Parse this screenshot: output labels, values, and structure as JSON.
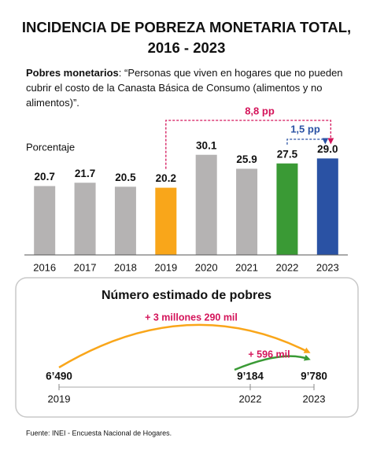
{
  "chart_data": [
    {
      "type": "bar",
      "title": "INCIDENCIA DE POBREZA MONETARIA TOTAL, 2016 - 2023",
      "subtitle_label": "Pobres monetarios",
      "subtitle": ": “Personas que viven en hogares que no pueden cubrir el costo de la Canasta Básica de Consumo (alimentos y no alimentos)”.",
      "y_label": "Porcentaje",
      "categories": [
        "2016",
        "2017",
        "2018",
        "2019",
        "2020",
        "2021",
        "2022",
        "2023"
      ],
      "values": [
        20.7,
        21.7,
        20.5,
        20.2,
        30.1,
        25.9,
        27.5,
        29.0
      ],
      "value_labels": [
        "20.7",
        "21.7",
        "20.5",
        "20.2",
        "30.1",
        "25.9",
        "27.5",
        "29.0"
      ],
      "colors": [
        "#b5b3b3",
        "#b5b3b3",
        "#b5b3b3",
        "#f9a61a",
        "#b5b3b3",
        "#b5b3b3",
        "#3a9a35",
        "#2a52a4"
      ],
      "ylim": [
        0,
        35
      ],
      "annotations": [
        {
          "text": "8,8 pp",
          "color": "#d4145a"
        },
        {
          "text": "1,5 pp",
          "color": "#2a52a4"
        }
      ]
    },
    {
      "type": "timeline",
      "title": "Número estimado de pobres",
      "x": [
        2019,
        2022,
        2023
      ],
      "values": [
        6490,
        9184,
        9780
      ],
      "value_labels": [
        "6’490",
        "9’184",
        "9’780"
      ],
      "xlim": [
        2019,
        2023
      ],
      "annotations": [
        {
          "text": "+ 3 millones 290 mil",
          "color": "#d4145a"
        },
        {
          "text": "+ 596 mil",
          "color": "#d4145a"
        }
      ],
      "source": "Fuente: INEI - Encuesta Nacional de Hogares."
    }
  ]
}
